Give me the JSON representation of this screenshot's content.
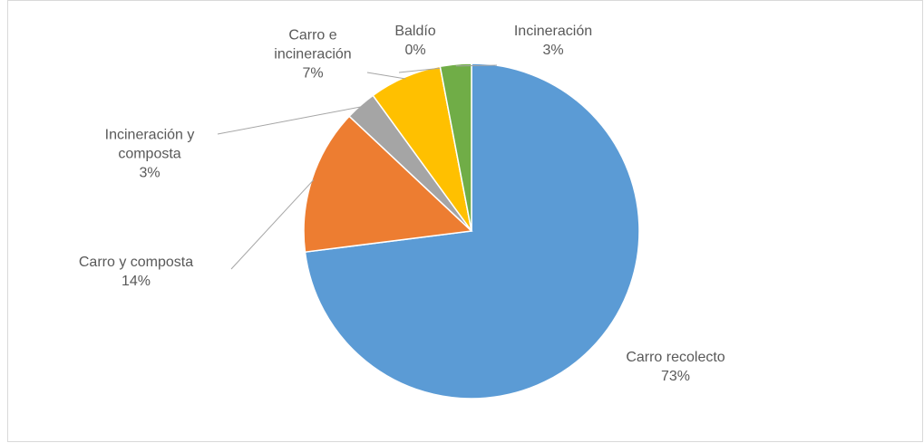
{
  "chart_data": {
    "type": "pie",
    "categories": [
      "Carro recolecto",
      "Carro y composta",
      "Incineración y composta",
      "Carro e incineración",
      "Baldío",
      "Incineración"
    ],
    "values": [
      73,
      14,
      3,
      7,
      0,
      3
    ],
    "value_labels": [
      "73%",
      "14%",
      "3%",
      "7%",
      "0%",
      "3%"
    ],
    "colors": [
      "#5b9bd5",
      "#ed7d31",
      "#a5a5a5",
      "#ffc000",
      "#4472c4",
      "#70ad47"
    ]
  }
}
